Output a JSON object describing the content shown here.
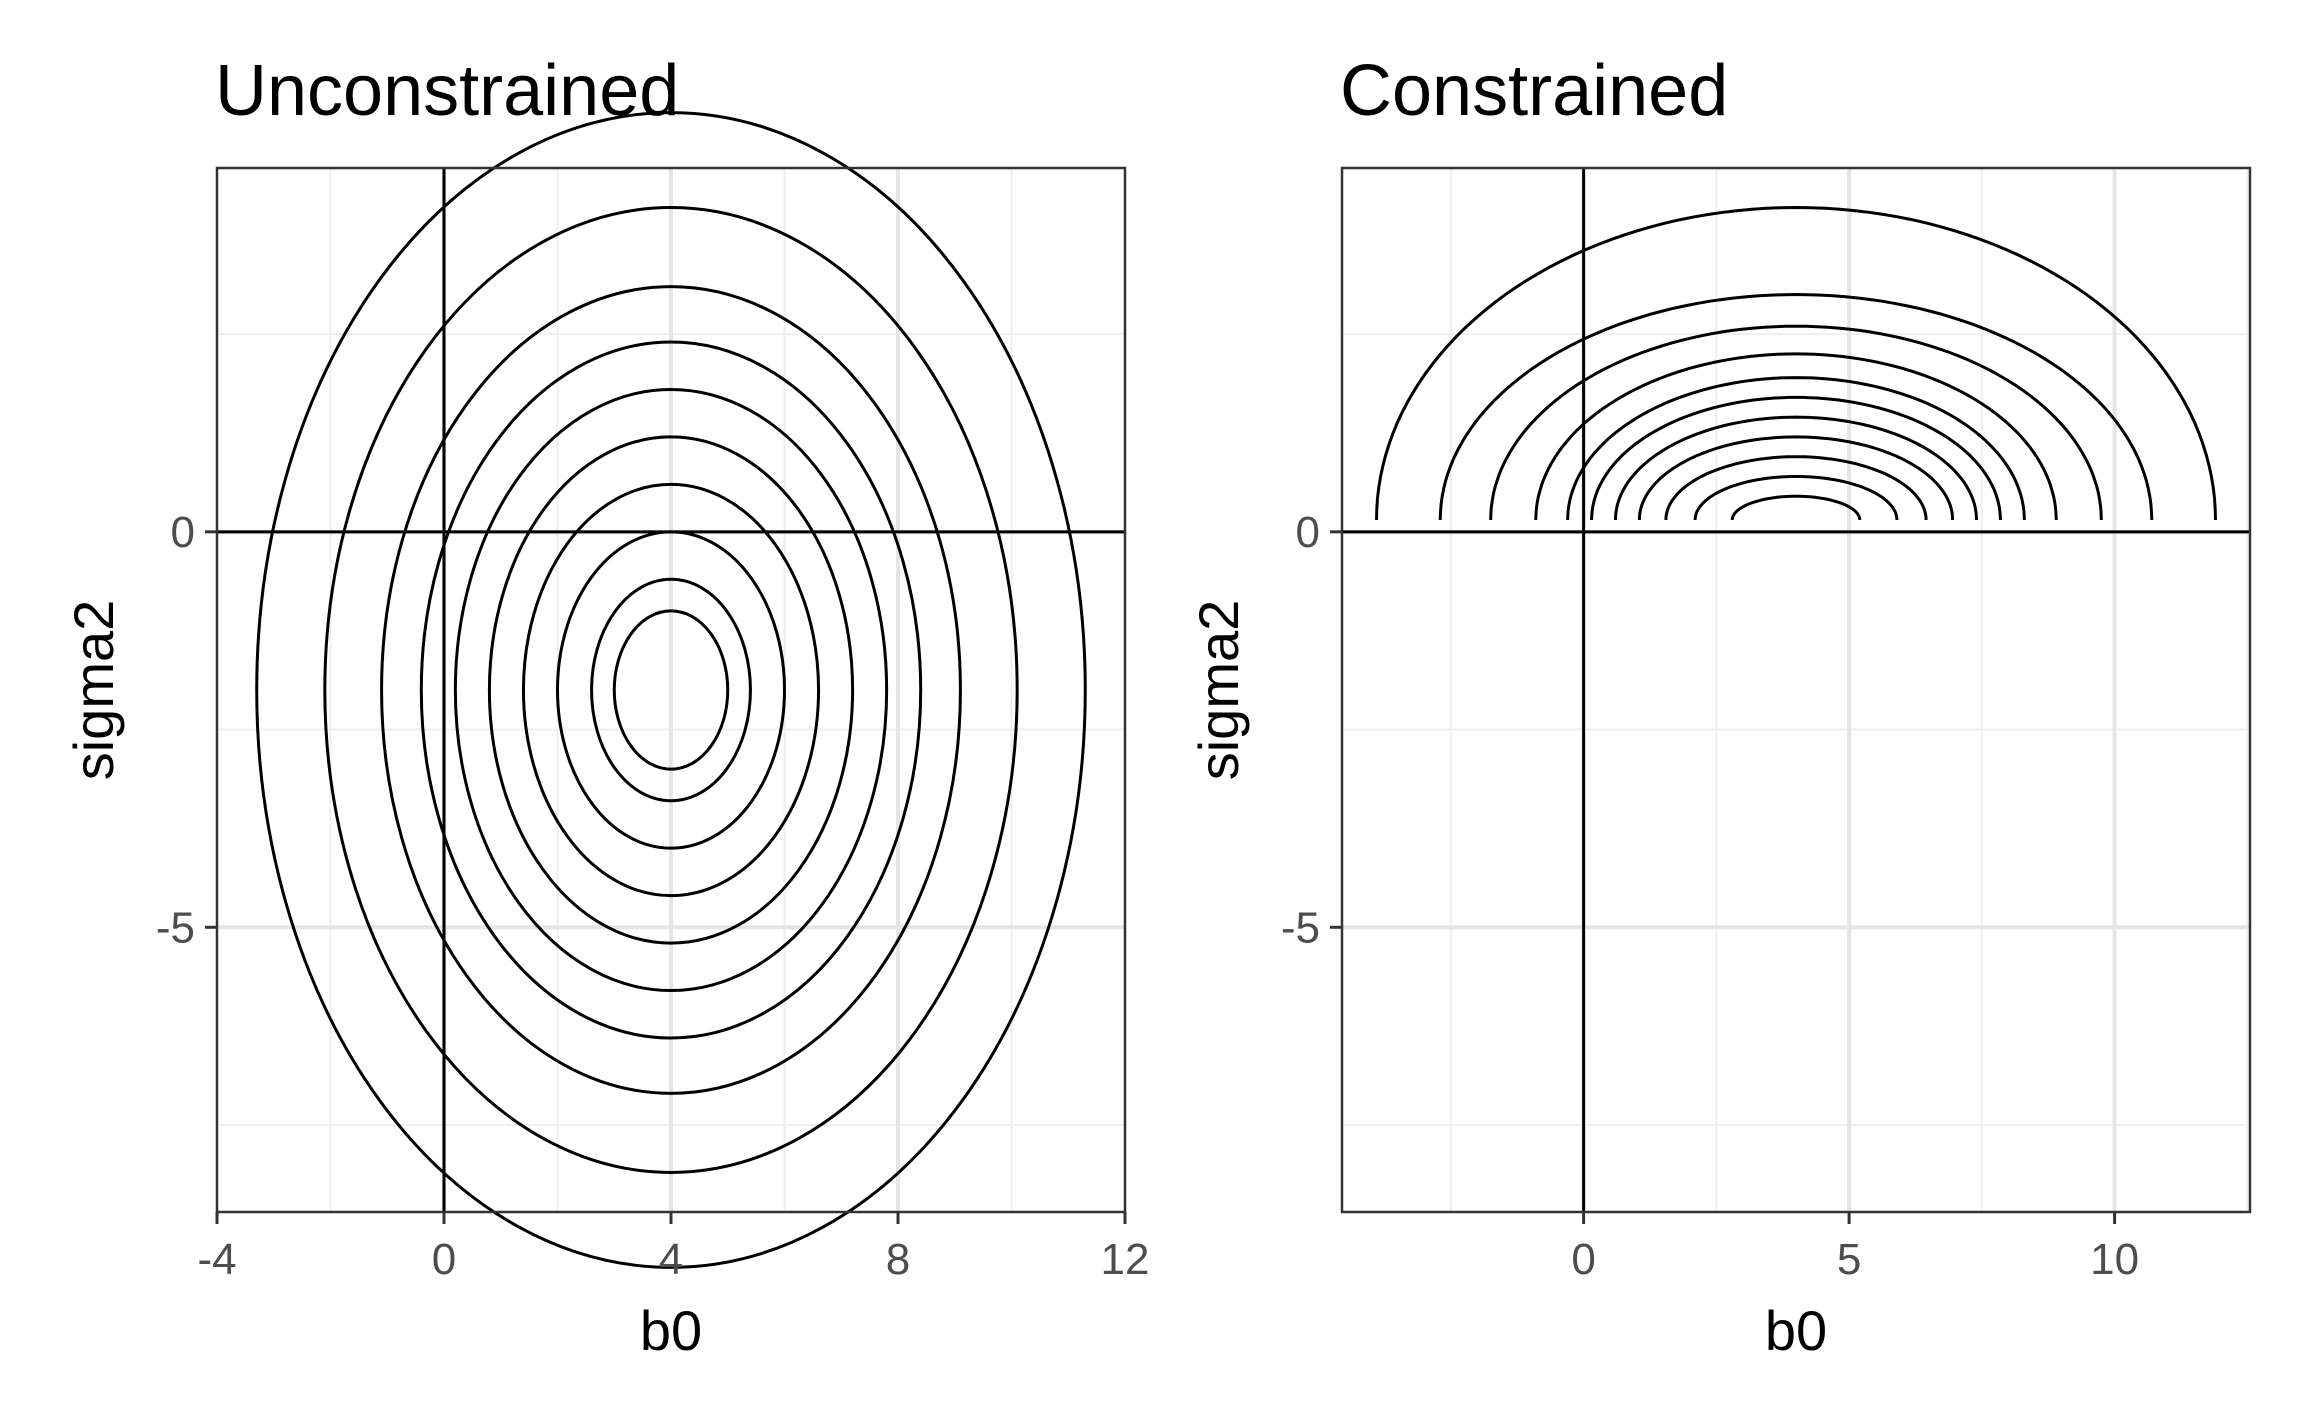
{
  "chart_data": [
    {
      "type": "contour",
      "title": "Unconstrained",
      "xlabel": "b0",
      "ylabel": "sigma2",
      "xlim": [
        -4,
        12
      ],
      "ylim": [
        -8.6,
        4.6
      ],
      "x_ticks": [
        -4,
        0,
        4,
        8,
        12
      ],
      "x_tick_labels": [
        "-4",
        "0",
        "4",
        "8",
        "12"
      ],
      "y_ticks": [
        -5,
        0
      ],
      "y_tick_labels": [
        "-5",
        "0"
      ],
      "x_minor": [
        -2,
        2,
        6,
        10
      ],
      "y_minor": [
        -7.5,
        -2.5,
        2.5
      ],
      "reference_lines": {
        "vline_x": 0,
        "hline_y": 0
      },
      "grid": true,
      "center": [
        4,
        -2
      ],
      "contours": [
        {
          "shape": "circle",
          "radius": 1.0
        },
        {
          "shape": "circle",
          "radius": 1.4
        },
        {
          "shape": "circle",
          "radius": 2.0
        },
        {
          "shape": "circle",
          "radius": 2.6
        },
        {
          "shape": "circle",
          "radius": 3.2
        },
        {
          "shape": "circle",
          "radius": 3.8
        },
        {
          "shape": "circle",
          "radius": 4.4
        },
        {
          "shape": "circle",
          "radius": 5.1
        },
        {
          "shape": "circle",
          "radius": 6.1
        },
        {
          "shape": "circle",
          "radius": 7.3
        }
      ]
    },
    {
      "type": "contour",
      "title": "Constrained",
      "xlabel": "b0",
      "ylabel": "sigma2",
      "xlim": [
        -4.55,
        12.55
      ],
      "ylim": [
        -8.6,
        4.6
      ],
      "x_ticks": [
        0,
        5,
        10
      ],
      "x_tick_labels": [
        "0",
        "5",
        "10"
      ],
      "y_ticks": [
        -5,
        0
      ],
      "y_tick_labels": [
        "-5",
        "0"
      ],
      "x_minor": [
        -2.5,
        2.5,
        7.5,
        12.5
      ],
      "y_minor": [
        -7.5,
        -2.5,
        2.5
      ],
      "reference_lines": {
        "vline_x": 0,
        "hline_y": 0
      },
      "grid": true,
      "center": [
        4,
        0
      ],
      "y_floor": 0.15,
      "contours": [
        {
          "shape": "upper-semicircle",
          "radius": 1.2,
          "peak": 0.3
        },
        {
          "shape": "upper-semicircle",
          "radius": 1.9,
          "peak": 0.55
        },
        {
          "shape": "upper-semicircle",
          "radius": 2.45,
          "peak": 0.8
        },
        {
          "shape": "upper-semicircle",
          "radius": 2.95,
          "peak": 1.05
        },
        {
          "shape": "upper-semicircle",
          "radius": 3.4,
          "peak": 1.3
        },
        {
          "shape": "upper-semicircle",
          "radius": 3.85,
          "peak": 1.55
        },
        {
          "shape": "upper-semicircle",
          "radius": 4.3,
          "peak": 1.8
        },
        {
          "shape": "upper-semicircle",
          "radius": 4.9,
          "peak": 2.1
        },
        {
          "shape": "upper-semicircle",
          "radius": 5.75,
          "peak": 2.45
        },
        {
          "shape": "upper-semicircle",
          "radius": 6.7,
          "peak": 2.85
        },
        {
          "shape": "upper-semicircle",
          "radius": 7.9,
          "peak": 3.95
        }
      ]
    }
  ]
}
